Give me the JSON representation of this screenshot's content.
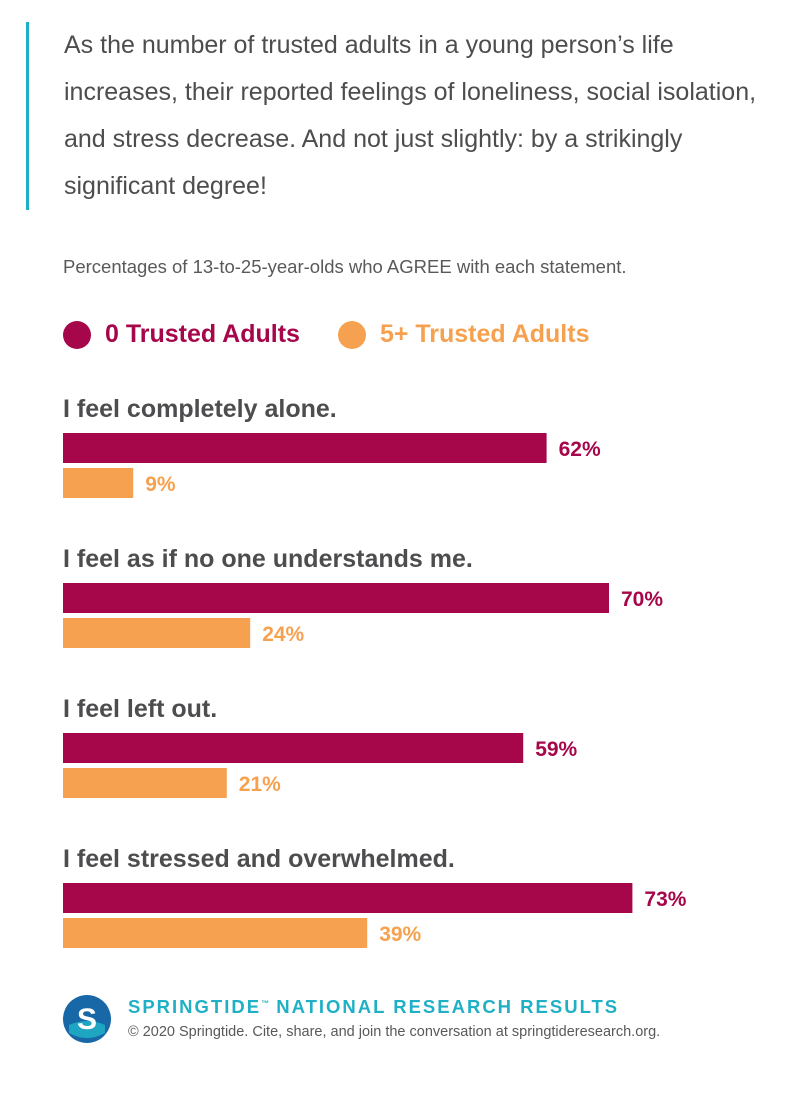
{
  "intro": "As the number of trusted adults in a young person’s life increases, their reported feelings of loneliness, social isolation, and stress decrease. And not just slightly: by a strikingly significant degree!",
  "subtitle": "Percentages of 13-to-25-year-olds who AGREE with each statement.",
  "legend": [
    {
      "label": "0 Trusted Adults",
      "color": "#a6064a"
    },
    {
      "label": "5+ Trusted Adults",
      "color": "#f6a14f"
    }
  ],
  "chart_data": {
    "type": "bar",
    "orientation": "horizontal",
    "categories": [
      "I feel completely alone.",
      "I feel as if no one understands me.",
      "I feel left out.",
      "I feel stressed and overwhelmed."
    ],
    "series": [
      {
        "name": "0 Trusted Adults",
        "color": "#a6064a",
        "values": [
          62,
          70,
          59,
          73
        ],
        "labels": [
          "62%",
          "70%",
          "59%",
          "73%"
        ]
      },
      {
        "name": "5+ Trusted Adults",
        "color": "#f6a14f",
        "values": [
          9,
          24,
          21,
          39
        ],
        "labels": [
          "9%",
          "24%",
          "21%",
          "39%"
        ]
      }
    ],
    "unit": "%",
    "xlim": [
      0,
      100
    ],
    "grid": false,
    "legend_position": "top"
  },
  "footer": {
    "logo_letter": "S",
    "title": "SPRINGTIDE",
    "trademark": "™",
    "title_rest": " NATIONAL RESEARCH RESULTS",
    "note": "© 2020 Springtide. Cite, share, and join the conversation at springtideresearch.org."
  },
  "colors": {
    "accent": "#1fb0c6",
    "text": "#4d4d4f",
    "logo": "#1868a8"
  }
}
